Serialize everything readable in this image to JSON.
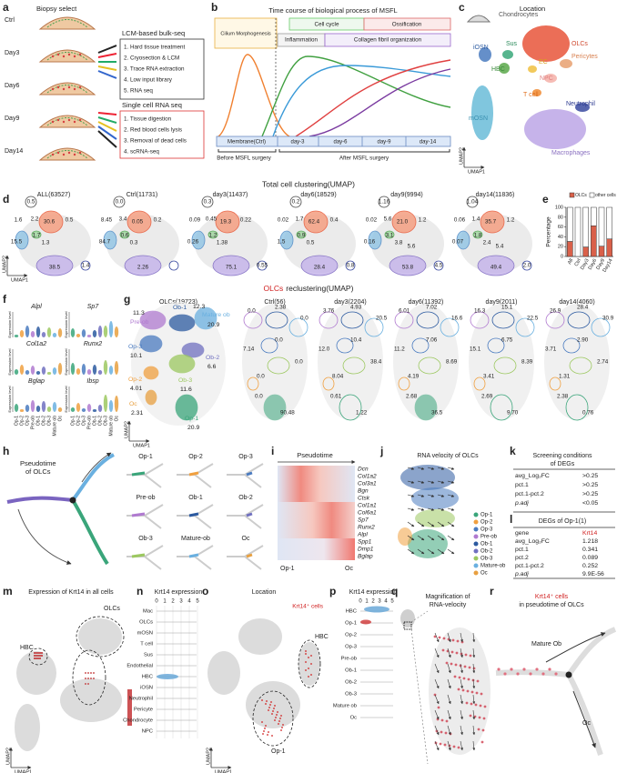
{
  "a": {
    "letter": "a",
    "title": "Biopsy select",
    "groups": [
      "Ctrl",
      "Day3",
      "Day6",
      "Day9",
      "Day14"
    ],
    "bulk": {
      "title": "LCM-based bulk-seq",
      "steps": [
        "1. Hard tissue treatment",
        "2. Cryosection & LCM",
        "3. Trace RNA extraction",
        "4. Low input library",
        "5. RNA seq"
      ]
    },
    "single_cell": {
      "title": "Single cell RNA seq",
      "steps": [
        "1. Tissue digestion",
        "2. Red blood cells lysis",
        "3. Removal of dead cells",
        "4. scRNA-seq"
      ]
    }
  },
  "b": {
    "letter": "b",
    "title": "Time course of biological process of MSFL",
    "processes": {
      "cilium": "Cilium Morphogenesis",
      "cell_cycle": "Cell cycle",
      "inflammation": "Inflammation",
      "ossification": "Ossification",
      "collagen": "Collagen fibril organization"
    },
    "timepoints": [
      "Membrane(Ctrl)",
      "day-3",
      "day-6",
      "day-9",
      "day-14"
    ],
    "before": "Before MSFL surgery",
    "after": "After MSFL surgery"
  },
  "c": {
    "letter": "c",
    "title": "Location",
    "clusters": [
      "Chondrocytes",
      "OLCs",
      "iOSN",
      "Sus",
      "HBC",
      "EC",
      "Pericytes",
      "NPC",
      "T cell",
      "Neutrophil",
      "mOSN",
      "Macrophages"
    ],
    "x_axis": "UMAP1",
    "y_axis": "UMAP2"
  },
  "d": {
    "letter": "d",
    "section_title": "Total cell clustering(UMAP)",
    "x_axis": "UMAP1",
    "y_axis": "UMAP2",
    "panels": [
      {
        "title": "ALL(63527)",
        "labels": [
          "0.5",
          "1.6",
          "2.2",
          "30.6",
          "0.5",
          "15.5",
          "1.7",
          "1.3",
          "38.5",
          "1.4"
        ]
      },
      {
        "title": "Ctrl(11731)",
        "labels": [
          "0.0",
          "8.45",
          "3.4",
          "0.05",
          "0.2",
          "84.7",
          "0.6",
          "0.3",
          "2.26"
        ]
      },
      {
        "title": "day3(11437)",
        "labels": [
          "0.3",
          "0.09",
          "0.45",
          "19.3",
          "0.22",
          "0.26",
          "1.2",
          "1.38",
          "75.1",
          "0.55"
        ]
      },
      {
        "title": "day6(18529)",
        "labels": [
          "0.2",
          "0.02",
          "1.7",
          "62.4",
          "0.4",
          "1.5",
          "0.9",
          "0.5",
          "28.4",
          "0.8"
        ]
      },
      {
        "title": "day9(9994)",
        "labels": [
          "1.16",
          "0.02",
          "5.6",
          "21.0",
          "1.2",
          "0.16",
          "3.1",
          "3.8",
          "5.6",
          "53.8",
          "4.5"
        ]
      },
      {
        "title": "day14(11836)",
        "labels": [
          "1.04",
          "0.06",
          "1.4",
          "35.7",
          "1.2",
          "0.07",
          "1.8",
          "2.4",
          "5.4",
          "49.4",
          "2.0"
        ]
      }
    ]
  },
  "e": {
    "letter": "e",
    "type": "bar",
    "stacked": true,
    "y_label": "Percentage",
    "categories": [
      "All",
      "Ctrl",
      "Day3",
      "Day6",
      "Day9",
      "Day14"
    ],
    "series": [
      {
        "name": "OLCs",
        "color": "#d9604a",
        "values": [
          30.6,
          0,
          19.3,
          62.4,
          21.0,
          35.7
        ]
      },
      {
        "name": "other cells",
        "color": "#ffffff",
        "values": [
          69.4,
          100,
          80.7,
          37.6,
          79.0,
          64.3
        ]
      }
    ],
    "ylim": [
      0,
      100
    ],
    "yticks": [
      0,
      20,
      40,
      60,
      80,
      100
    ]
  },
  "g_section": {
    "highlight": "OLCs",
    "rest": "reclustering(UMAP)"
  },
  "f": {
    "letter": "f",
    "genes": [
      "Alpl",
      "Sp7",
      "Col1a2",
      "Runx2",
      "Bglap",
      "Ibsp"
    ],
    "y_label": "Expression level",
    "categories": [
      "Op-1",
      "Op-2",
      "Op-3",
      "Pre-ob",
      "Ob-1",
      "Ob-2",
      "Ob-3",
      "Mature ob",
      "Oc"
    ]
  },
  "g": {
    "letter": "g",
    "x_axis": "UMAP1",
    "y_axis": "UMAP2",
    "main": {
      "title": "OLCs(19723)",
      "clusters": [
        {
          "name": "Pre-ob",
          "value": "11.3"
        },
        {
          "name": "Ob-1",
          "value": "12.3"
        },
        {
          "name": "Mature ob",
          "value": "20.9"
        },
        {
          "name": "Op-3",
          "value": "10.1"
        },
        {
          "name": "Ob-2",
          "value": "6.6"
        },
        {
          "name": "Op-2",
          "value": "4.01"
        },
        {
          "name": "Ob-3",
          "value": "11.6"
        },
        {
          "name": "Oc",
          "value": "2.31"
        },
        {
          "name": "Op-1",
          "value": "20.9"
        }
      ]
    },
    "panels": [
      {
        "title": "Ctrl(56)",
        "labels": [
          "0.0",
          "2.38",
          "0.0",
          "0.0",
          "7.14",
          "0.0",
          "0.0",
          "0.0",
          "90.48"
        ]
      },
      {
        "title": "day3(2204)",
        "labels": [
          "3.76",
          "4.93",
          "20.5",
          "10.4",
          "12.0",
          "38.4",
          "8.04",
          "0.61",
          "1.22"
        ]
      },
      {
        "title": "day6(11392)",
        "labels": [
          "6.01",
          "7.02",
          "16.6",
          "7.06",
          "11.2",
          "8.69",
          "4.19",
          "2.68",
          "36.5"
        ]
      },
      {
        "title": "day9(2011)",
        "labels": [
          "16.3",
          "15.1",
          "22.5",
          "6.75",
          "15.1",
          "8.39",
          "3.41",
          "2.69",
          "9.70"
        ]
      },
      {
        "title": "day14(4060)",
        "labels": [
          "26.9",
          "28.4",
          "30.9",
          "2.90",
          "3.71",
          "2.74",
          "1.31",
          "2.38",
          "0.76"
        ]
      }
    ]
  },
  "h": {
    "letter": "h",
    "title_lines": [
      "Pseudotime",
      "of OLCs"
    ],
    "subsets": [
      "Op-1",
      "Op-2",
      "Op-3",
      "Pre-ob",
      "Ob-1",
      "Ob-2",
      "Ob-3",
      "Mature-ob",
      "Oc"
    ]
  },
  "i": {
    "letter": "i",
    "title": "Pseudotime",
    "genes": [
      "Dcn",
      "Col1a2",
      "Col3a1",
      "Bgn",
      "Ctsk",
      "Col1a1",
      "Col6a1",
      "Sp7",
      "Runx2",
      "Alpl",
      "Spp1",
      "Dmp1",
      "Bglap"
    ],
    "start": "Op-1",
    "end": "Oc"
  },
  "j": {
    "letter": "j",
    "title": "RNA velocity of OLCs",
    "legend": [
      "Op-1",
      "Op-2",
      "Op-3",
      "Pre-ob",
      "Ob-1",
      "Ob-2",
      "Ob-3",
      "Mature-ob",
      "Oc"
    ]
  },
  "k": {
    "letter": "k",
    "title_lines": [
      "Screening conditions",
      "of DEGs"
    ],
    "rows": [
      [
        "avg_Log₂FC",
        ">0.25"
      ],
      [
        "pct.1",
        ">0.25"
      ],
      [
        "pct.1-pct.2",
        ">0.25"
      ],
      [
        "p.adj",
        "<0.05"
      ]
    ]
  },
  "l": {
    "letter": "l",
    "title": "DEGs of Op-1(1)",
    "rows": [
      [
        "gene",
        "Krt14"
      ],
      [
        "avg_Log₂FC",
        "1.218"
      ],
      [
        "pct.1",
        "0.341"
      ],
      [
        "pct.2",
        "0.089"
      ],
      [
        "pct.1-pct.2",
        "0.252"
      ],
      [
        "p.adj",
        "9.9E-56"
      ]
    ]
  },
  "m": {
    "letter": "m",
    "title": "Expression of Krt14 in all cells",
    "labels": [
      "OLCs",
      "HBC"
    ],
    "x_axis": "UMAP1",
    "y_axis": "UMAP2"
  },
  "n": {
    "letter": "n",
    "title": "Krt14 expression",
    "ticks": [
      0,
      1,
      2,
      3,
      4,
      5
    ],
    "categories": [
      "Mac",
      "OLCs",
      "mOSN",
      "T cell",
      "Sus",
      "Endothelial",
      "HBC",
      "iOSN",
      "Neutrophil",
      "Pericyte",
      "Chondrocyte",
      "NPC"
    ]
  },
  "o": {
    "letter": "o",
    "title": "Location",
    "highlight": "Krt14⁺ cells",
    "labels": [
      "HBC",
      "Op-1"
    ],
    "x_axis": "UMAP1",
    "y_axis": "UMAP2"
  },
  "p": {
    "letter": "p",
    "title": "Krt14 expression",
    "ticks": [
      0,
      1,
      2,
      3,
      4,
      5
    ],
    "categories": [
      "HBC",
      "Op-1",
      "Op-2",
      "Op-3",
      "Pre-ob",
      "Ob-1",
      "Ob-2",
      "Ob-3",
      "Mature ob",
      "Oc"
    ]
  },
  "q": {
    "letter": "q",
    "title_lines": [
      "Magnification of",
      "RNA-velocity"
    ]
  },
  "r": {
    "letter": "r",
    "highlight": "Krt14⁺ cells",
    "title": "in pseudotime of OLCs",
    "labels": [
      "Mature Ob",
      "Oc"
    ]
  }
}
